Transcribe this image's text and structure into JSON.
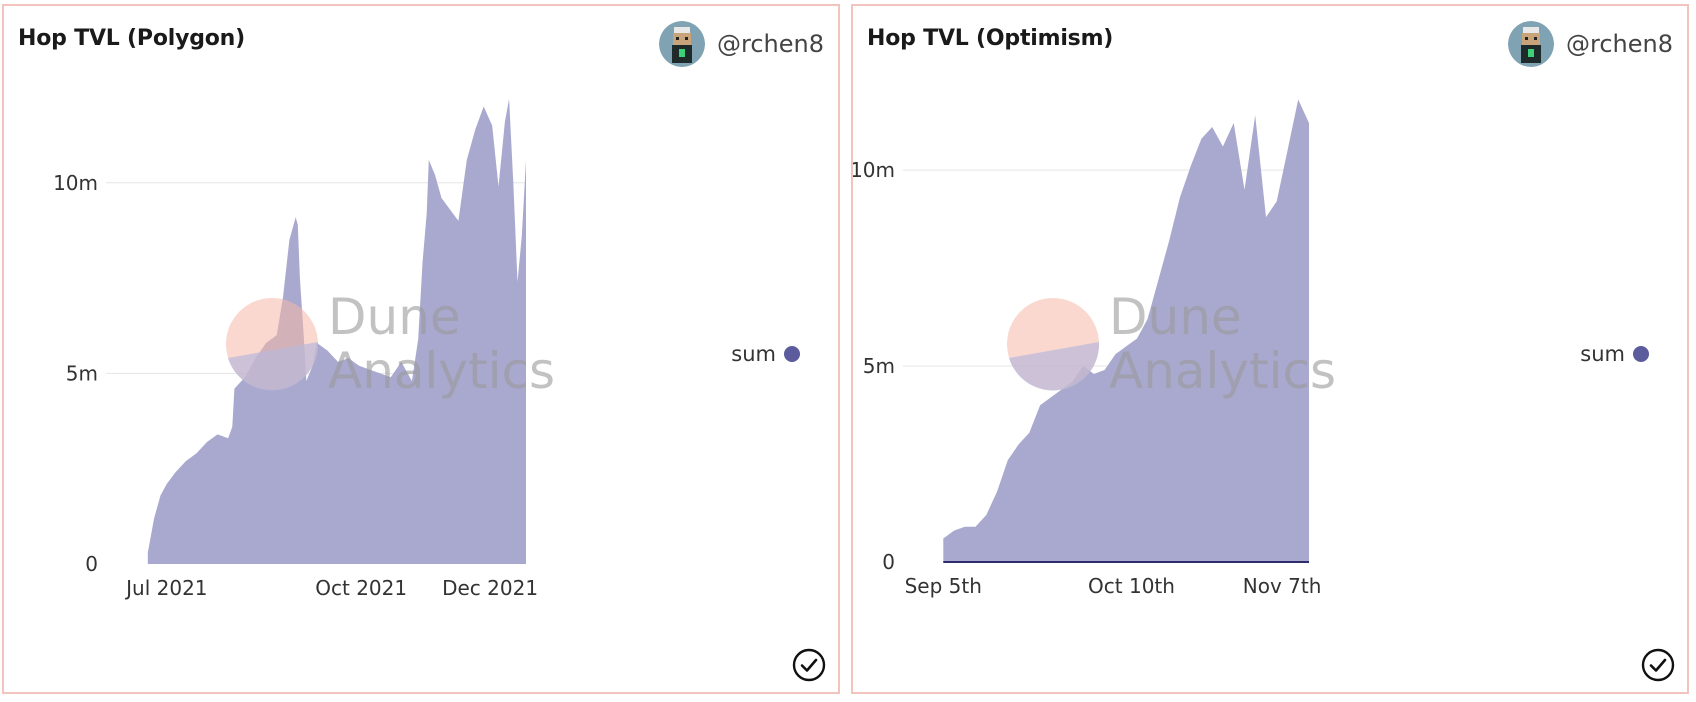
{
  "author": "@rchen8",
  "watermark": {
    "line1": "Dune",
    "line2": "Analytics"
  },
  "colors": {
    "area": "#a9a9cf",
    "legend": "#5b5b9e",
    "grid": "#e6e6e6",
    "panel_border": "#f3c4bd"
  },
  "chart_data": [
    {
      "type": "area",
      "title": "Hop TVL (Polygon)",
      "series": [
        {
          "name": "sum"
        }
      ],
      "x": [
        "2021-06-22",
        "2021-06-25",
        "2021-06-28",
        "2021-07-01",
        "2021-07-05",
        "2021-07-10",
        "2021-07-15",
        "2021-07-20",
        "2021-07-25",
        "2021-07-30",
        "2021-08-01",
        "2021-08-02",
        "2021-08-07",
        "2021-08-12",
        "2021-08-17",
        "2021-08-22",
        "2021-08-25",
        "2021-08-28",
        "2021-08-31",
        "2021-09-01",
        "2021-09-02",
        "2021-09-04",
        "2021-09-05",
        "2021-09-08",
        "2021-09-10",
        "2021-09-15",
        "2021-09-20",
        "2021-09-25",
        "2021-09-30",
        "2021-10-05",
        "2021-10-10",
        "2021-10-15",
        "2021-10-20",
        "2021-10-25",
        "2021-10-28",
        "2021-10-30",
        "2021-11-01",
        "2021-11-02",
        "2021-11-05",
        "2021-11-08",
        "2021-11-12",
        "2021-11-16",
        "2021-11-20",
        "2021-11-24",
        "2021-11-28",
        "2021-12-02",
        "2021-12-05",
        "2021-12-08",
        "2021-12-10",
        "2021-12-12",
        "2021-12-14",
        "2021-12-16",
        "2021-12-18"
      ],
      "values": [
        0.3,
        1.2,
        1.8,
        2.1,
        2.4,
        2.7,
        2.9,
        3.2,
        3.4,
        3.3,
        3.6,
        4.6,
        4.9,
        5.4,
        5.8,
        6.0,
        7.0,
        8.5,
        9.1,
        8.9,
        7.5,
        5.8,
        4.8,
        5.2,
        5.8,
        5.6,
        5.3,
        5.4,
        5.2,
        5.1,
        5.0,
        4.9,
        5.3,
        4.8,
        5.9,
        7.9,
        9.2,
        10.6,
        10.2,
        9.6,
        9.3,
        9.0,
        10.6,
        11.4,
        12.0,
        11.5,
        9.9,
        11.6,
        12.2,
        10.0,
        7.4,
        8.6,
        10.6
      ],
      "x_ticks": [
        "Jul 2021",
        "Oct 2021",
        "Dec 2021"
      ],
      "x_tick_dates": [
        "2021-07-01",
        "2021-10-01",
        "2021-12-01"
      ],
      "y_ticks": [
        "0",
        "5m",
        "10m"
      ],
      "y_tick_values": [
        0,
        5,
        10
      ],
      "ylim": [
        0,
        12.8
      ],
      "xlim": [
        "2021-06-06",
        "2021-12-18"
      ],
      "y_unit": "m"
    },
    {
      "type": "area",
      "title": "Hop TVL (Optimism)",
      "series": [
        {
          "name": "sum"
        }
      ],
      "x": [
        "2021-09-05",
        "2021-09-07",
        "2021-09-09",
        "2021-09-11",
        "2021-09-13",
        "2021-09-15",
        "2021-09-17",
        "2021-09-19",
        "2021-09-21",
        "2021-09-23",
        "2021-09-25",
        "2021-09-27",
        "2021-09-29",
        "2021-10-01",
        "2021-10-03",
        "2021-10-05",
        "2021-10-07",
        "2021-10-09",
        "2021-10-11",
        "2021-10-13",
        "2021-10-15",
        "2021-10-17",
        "2021-10-19",
        "2021-10-21",
        "2021-10-23",
        "2021-10-25",
        "2021-10-27",
        "2021-10-29",
        "2021-10-31",
        "2021-11-02",
        "2021-11-04",
        "2021-11-06",
        "2021-11-08",
        "2021-11-10",
        "2021-11-12"
      ],
      "values": [
        0.6,
        0.8,
        0.9,
        0.9,
        1.2,
        1.8,
        2.6,
        3.0,
        3.3,
        4.0,
        4.2,
        4.4,
        4.6,
        5.0,
        4.8,
        4.9,
        5.3,
        5.5,
        5.7,
        6.2,
        7.2,
        8.2,
        9.3,
        10.1,
        10.8,
        11.1,
        10.6,
        11.2,
        9.5,
        11.4,
        8.8,
        9.2,
        10.5,
        11.8,
        11.2
      ],
      "x_ticks": [
        "Sep 5th",
        "Oct 10th",
        "Nov 7th"
      ],
      "x_tick_dates": [
        "2021-09-05",
        "2021-10-10",
        "2021-11-07"
      ],
      "y_ticks": [
        "0",
        "5m",
        "10m"
      ],
      "y_tick_values": [
        0,
        5,
        10
      ],
      "ylim": [
        0,
        12.4
      ],
      "xlim": [
        "2021-08-30",
        "2021-11-12"
      ],
      "y_unit": "m"
    }
  ]
}
